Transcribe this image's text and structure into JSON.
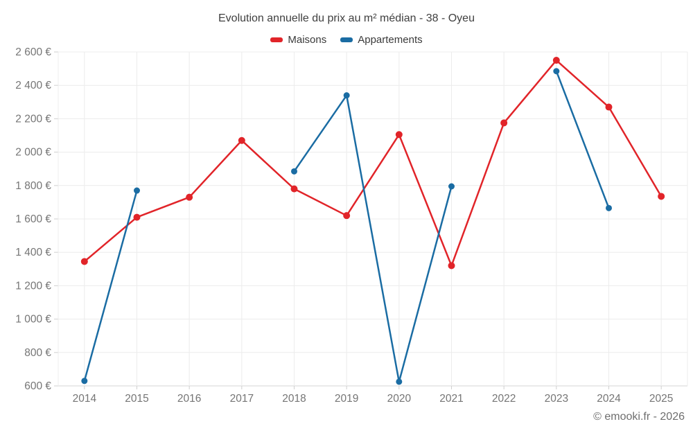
{
  "chart": {
    "title": "Evolution annuelle du prix au m² médian - 38 - Oyeu",
    "footer": "© emooki.fr - 2026"
  },
  "chart_data": {
    "type": "line",
    "title": "Evolution annuelle du prix au m² médian - 38 - Oyeu",
    "categories": [
      "2014",
      "2015",
      "2016",
      "2017",
      "2018",
      "2019",
      "2020",
      "2021",
      "2022",
      "2023",
      "2024",
      "2025"
    ],
    "series": [
      {
        "name": "Maisons",
        "color": "#e12429",
        "marker_radius": 5,
        "values": [
          1345,
          1610,
          1730,
          2070,
          1780,
          1620,
          2105,
          1320,
          2175,
          2550,
          2270,
          1735
        ]
      },
      {
        "name": "Appartements",
        "color": "#1a6ca3",
        "marker_radius": 4.5,
        "values": [
          630,
          1770,
          null,
          null,
          1885,
          2340,
          625,
          1795,
          null,
          2485,
          1665,
          null
        ]
      }
    ],
    "ylim": [
      600,
      2600
    ],
    "y_tick_values": [
      600,
      800,
      1000,
      1200,
      1400,
      1600,
      1800,
      2000,
      2200,
      2400,
      2600
    ],
    "y_tick_labels": [
      "600 €",
      "800 €",
      "1 000 €",
      "1 200 €",
      "1 400 €",
      "1 600 €",
      "1 800 €",
      "2 000 €",
      "2 200 €",
      "2 400 €",
      "2 600 €"
    ],
    "grid": true,
    "legend_position": "top",
    "colors": {
      "grid_line": "#ececec",
      "axis_line": "#d6d6d6",
      "tick_mark": "#cfcfcf",
      "tick_label": "#757575",
      "title_text": "#3f3f3f",
      "footer_text": "#6e6e6e"
    }
  }
}
